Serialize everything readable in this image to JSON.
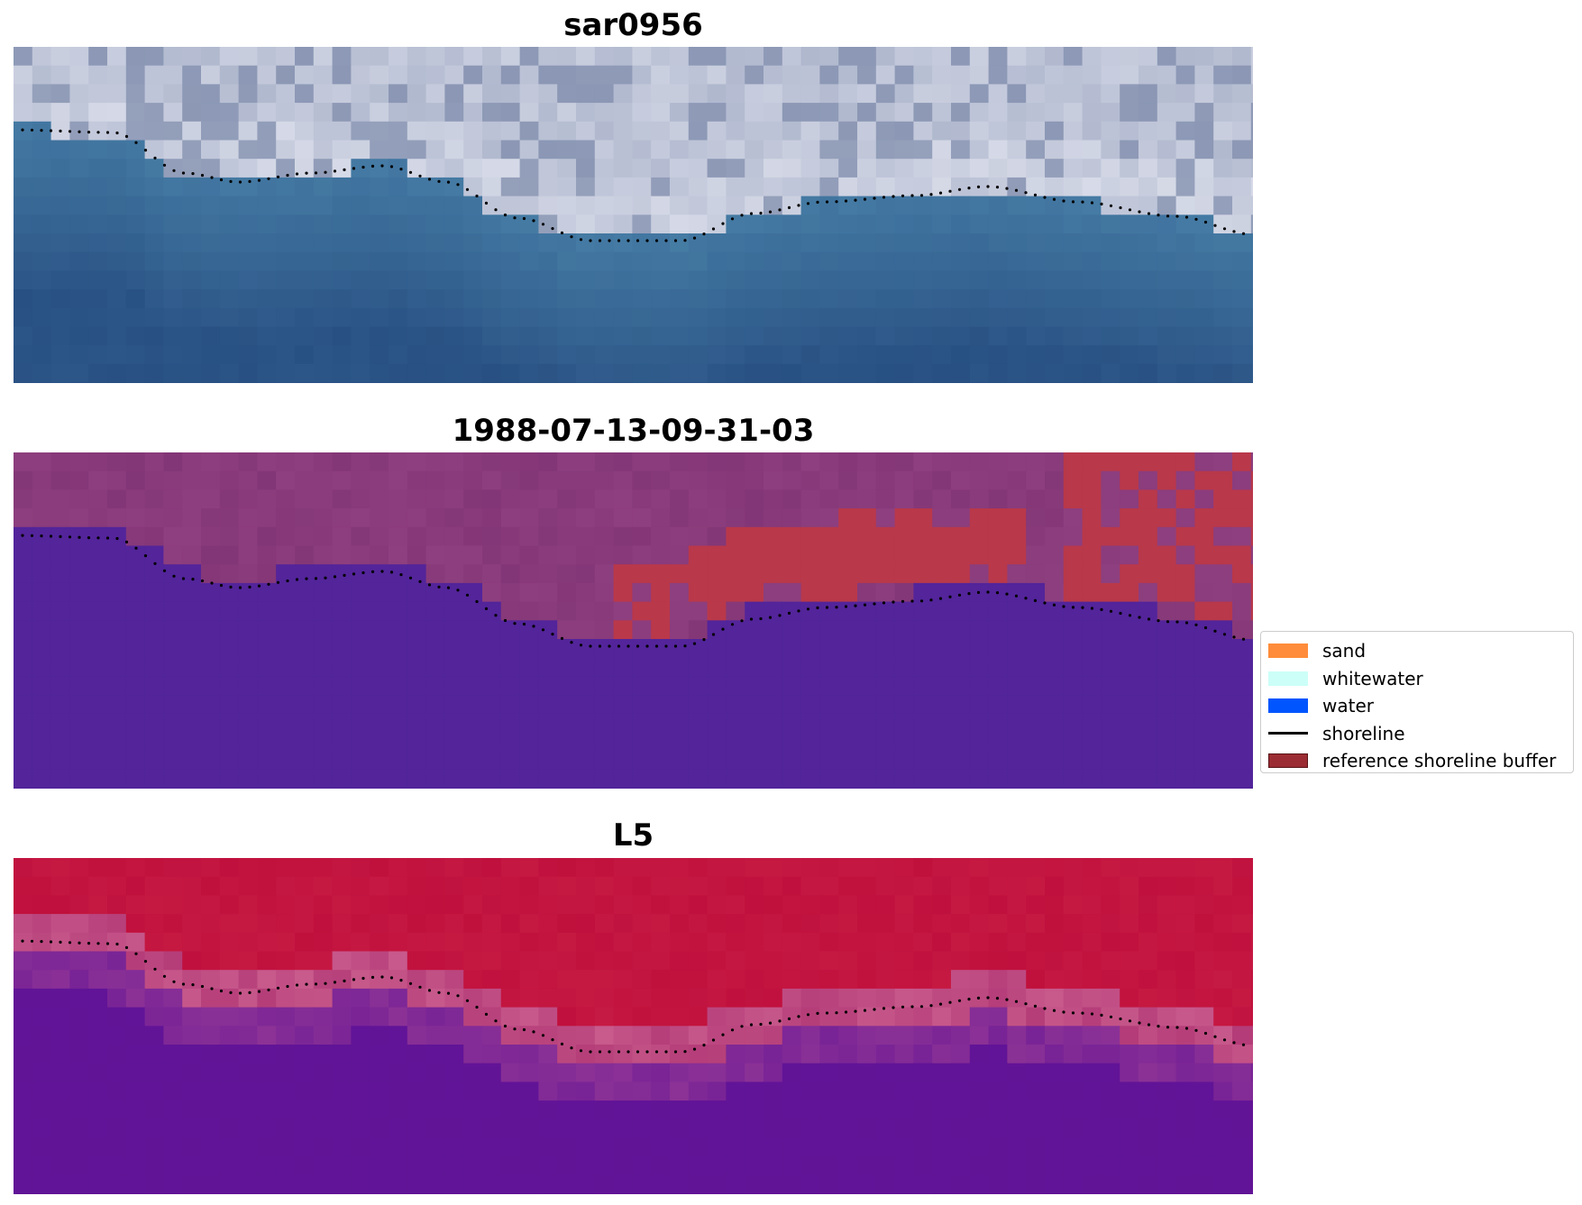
{
  "panels": [
    {
      "title": "sar0956",
      "style": "sar"
    },
    {
      "title": "1988-07-13-09-31-03",
      "style": "classified"
    },
    {
      "title": "L5",
      "style": "index"
    }
  ],
  "legend": {
    "items": [
      {
        "label": "sand",
        "color": "#ff8c3a",
        "kind": "patch"
      },
      {
        "label": "whitewater",
        "color": "#ccfff8",
        "kind": "patch"
      },
      {
        "label": "water",
        "color": "#0055ff",
        "kind": "patch"
      },
      {
        "label": "shoreline",
        "color": "#000000",
        "kind": "line"
      },
      {
        "label": "reference shoreline buffer",
        "color": "#9b2c33",
        "kind": "patch",
        "edge": "#5a1418"
      }
    ]
  },
  "colors": {
    "sar_water": "#35638f",
    "sar_land": "#a7b0c8",
    "classified_water": "#53249a",
    "classified_land": "#8e3f7f",
    "buffer_red": "#b9384a",
    "index_water": "#621497",
    "index_land": "#c0103d",
    "shoreline": "#000000"
  }
}
